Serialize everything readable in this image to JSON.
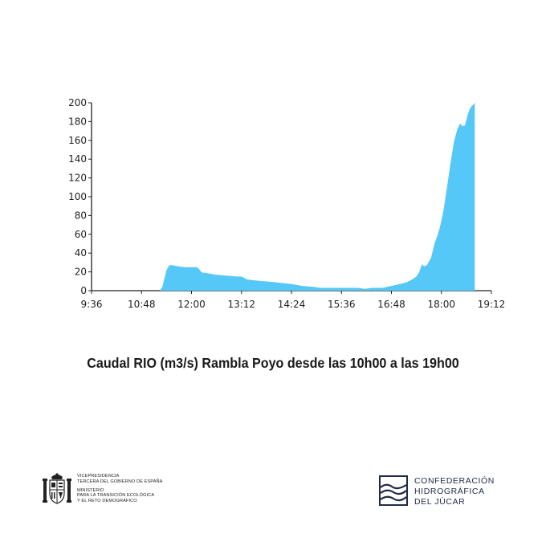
{
  "chart_data": {
    "type": "area",
    "title": "Caudal RIO (m3/s) Rambla Poyo desde las 10h00 a las 19h00",
    "xlabel": "",
    "ylabel": "",
    "x_ticks": [
      "9:36",
      "10:48",
      "12:00",
      "13:12",
      "14:24",
      "15:36",
      "16:48",
      "18:00",
      "19:12"
    ],
    "x_range_minutes": [
      576,
      1152
    ],
    "ylim": [
      0,
      200
    ],
    "y_ticks": [
      0,
      20,
      40,
      60,
      80,
      100,
      120,
      140,
      160,
      180,
      200
    ],
    "color": "#55c8f8",
    "grid": false,
    "series": [
      {
        "x": [
          "10:00",
          "10:20",
          "11:00",
          "11:14",
          "11:18",
          "11:20",
          "11:24",
          "11:28",
          "11:33",
          "11:40",
          "11:50",
          "11:57",
          "12:00",
          "12:07",
          "12:10",
          "12:14",
          "12:17",
          "12:20",
          "12:35",
          "12:50",
          "13:05",
          "13:12",
          "13:20",
          "13:30",
          "13:45",
          "14:00",
          "14:24",
          "14:40",
          "14:56",
          "15:05",
          "15:20",
          "15:36",
          "15:50",
          "16:00",
          "16:10",
          "16:20",
          "16:35",
          "16:48",
          "17:00",
          "17:10",
          "17:18",
          "17:24",
          "17:28",
          "17:30",
          "17:32",
          "17:35",
          "17:39",
          "17:45",
          "17:50",
          "17:54",
          "17:58",
          "18:03",
          "18:08",
          "18:13",
          "18:18",
          "18:23",
          "18:27",
          "18:30",
          "18:34",
          "18:37",
          "18:40",
          "18:43",
          "18:46",
          "18:48"
        ],
        "y": [
          0,
          0,
          0,
          0,
          4,
          10,
          22,
          27,
          27,
          26,
          25,
          25,
          25,
          25,
          24,
          20,
          19,
          19,
          17,
          16,
          15,
          15,
          12,
          11,
          10,
          9,
          7,
          5,
          4,
          3,
          3,
          3,
          3,
          3,
          2,
          3,
          3,
          5,
          7,
          9,
          12,
          15,
          20,
          24,
          28,
          26,
          27,
          35,
          50,
          58,
          68,
          85,
          110,
          135,
          158,
          172,
          178,
          175,
          176,
          185,
          192,
          196,
          198,
          200
        ]
      }
    ]
  },
  "logos": {
    "gov": {
      "line1": "VICEPRESIDENCIA",
      "line2": "TERCERA  DEL GOBIERNO DE ESPAÑA",
      "line3": "MINISTERIO\nPARA LA TRANSICIÓN ECOLÓGICA\nY EL RETO DEMOGRÁFICO",
      "icon": "spain-coat-of-arms-icon"
    },
    "chj": {
      "line1": "CONFEDERACIÓN",
      "line2": "HIDROGRÁFICA",
      "line3": "DEL JÚCAR",
      "icon": "waves-icon",
      "color": "#1f2a44"
    }
  }
}
